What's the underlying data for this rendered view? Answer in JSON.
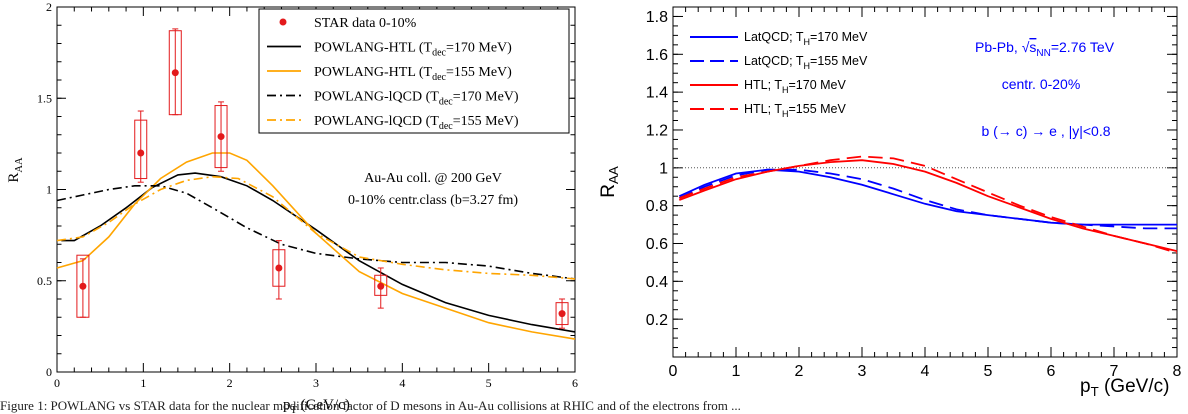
{
  "caption": "Figure 1: POWLANG vs STAR data for the nuclear modification factor of D mesons in Au-Au collisions at RHIC and of the electrons from ...",
  "chart_data": [
    {
      "type": "line",
      "xlabel": {
        "main": "p",
        "sub": "T",
        "rest": " (GeV/c)"
      },
      "ylabel": {
        "main": "R",
        "sub": "AA"
      },
      "xlim": [
        0,
        6
      ],
      "ylim": [
        0,
        2
      ],
      "xticks": [
        0,
        1,
        2,
        3,
        4,
        5,
        6
      ],
      "yticks": [
        0,
        0.5,
        1,
        1.5,
        2
      ],
      "xtick_labels": [
        "0",
        "1",
        "2",
        "3",
        "4",
        "5",
        "6"
      ],
      "ytick_labels": [
        "0",
        "0.5",
        "1",
        "1.5",
        "2"
      ],
      "grid": false,
      "legend_position": "top-right",
      "legend": [
        {
          "text": "STAR data 0-10%",
          "color": "#e31a1c",
          "style": "marker"
        },
        {
          "text": "POWLANG-HTL (T",
          "sub": "dec",
          "rest": "=170 MeV)",
          "color": "#000000",
          "style": "solid"
        },
        {
          "text": "POWLANG-HTL (T",
          "sub": "dec",
          "rest": "=155 MeV)",
          "color": "#ffa500",
          "style": "solid"
        },
        {
          "text": "POWLANG-lQCD (T",
          "sub": "dec",
          "rest": "=170 MeV)",
          "color": "#000000",
          "style": "dashdot"
        },
        {
          "text": "POWLANG-lQCD (T",
          "sub": "dec",
          "rest": "=155 MeV)",
          "color": "#ffa500",
          "style": "dashdot"
        }
      ],
      "annotations": [
        "Au-Au coll. @ 200 GeV",
        "0-10% centr.class (b=3.27 fm)"
      ],
      "points": {
        "name": "STAR data 0-10%",
        "x": [
          0.3,
          0.97,
          1.37,
          1.9,
          2.57,
          3.75,
          5.85
        ],
        "y": [
          0.47,
          1.2,
          1.64,
          1.29,
          0.57,
          0.47,
          0.32
        ],
        "stat_lo": [
          0.3,
          1.04,
          1.41,
          1.1,
          0.4,
          0.35,
          0.24
        ],
        "stat_hi": [
          0.62,
          1.43,
          1.88,
          1.48,
          0.72,
          0.57,
          0.4
        ],
        "sys_lo": [
          0.3,
          1.06,
          1.41,
          1.12,
          0.47,
          0.42,
          0.26
        ],
        "sys_hi": [
          0.64,
          1.38,
          1.87,
          1.46,
          0.67,
          0.53,
          0.38
        ]
      },
      "series": [
        {
          "name": "POWLANG-HTL (Tdec=170 MeV)",
          "color": "#000000",
          "dash": "solid",
          "x": [
            0.05,
            0.2,
            0.5,
            0.8,
            1.1,
            1.4,
            1.6,
            1.9,
            2.2,
            2.5,
            3.0,
            3.5,
            4.0,
            4.5,
            5.0,
            5.5,
            6.0
          ],
          "y": [
            0.72,
            0.72,
            0.8,
            0.9,
            1.01,
            1.08,
            1.09,
            1.07,
            1.02,
            0.94,
            0.78,
            0.61,
            0.48,
            0.38,
            0.31,
            0.26,
            0.22
          ]
        },
        {
          "name": "POWLANG-HTL (Tdec=155 MeV)",
          "color": "#ffa500",
          "dash": "solid",
          "x": [
            0.0,
            0.3,
            0.6,
            0.9,
            1.2,
            1.5,
            1.8,
            2.0,
            2.2,
            2.5,
            3.0,
            3.5,
            4.0,
            4.5,
            5.0,
            5.5,
            6.0
          ],
          "y": [
            0.57,
            0.61,
            0.74,
            0.92,
            1.06,
            1.15,
            1.2,
            1.2,
            1.16,
            1.02,
            0.76,
            0.55,
            0.43,
            0.35,
            0.27,
            0.22,
            0.18
          ]
        },
        {
          "name": "POWLANG-lQCD (Tdec=170 MeV)",
          "color": "#000000",
          "dash": "dashdot",
          "x": [
            0.0,
            0.3,
            0.6,
            0.9,
            1.2,
            1.5,
            1.8,
            2.2,
            2.6,
            3.0,
            3.5,
            4.0,
            4.5,
            5.0,
            5.5,
            6.0
          ],
          "y": [
            0.94,
            0.97,
            1.0,
            1.02,
            1.02,
            0.98,
            0.9,
            0.79,
            0.7,
            0.65,
            0.62,
            0.6,
            0.6,
            0.58,
            0.54,
            0.51
          ]
        },
        {
          "name": "POWLANG-lQCD (Tdec=155 MeV)",
          "color": "#ffa500",
          "dash": "dashdot",
          "x": [
            0.0,
            0.3,
            0.6,
            0.9,
            1.2,
            1.5,
            1.8,
            2.1,
            2.5,
            3.0,
            3.5,
            4.0,
            4.5,
            5.0,
            5.5,
            6.0
          ],
          "y": [
            0.72,
            0.74,
            0.82,
            0.92,
            1.0,
            1.05,
            1.07,
            1.06,
            0.96,
            0.76,
            0.63,
            0.59,
            0.56,
            0.54,
            0.53,
            0.51
          ]
        }
      ]
    },
    {
      "type": "line",
      "xlabel": {
        "main": "p",
        "sub": "T",
        "rest": " (GeV/c)"
      },
      "ylabel": {
        "main": "R",
        "sub": "AA"
      },
      "xlim": [
        0,
        8
      ],
      "ylim": [
        0,
        1.85
      ],
      "xticks": [
        0,
        1,
        2,
        3,
        4,
        5,
        6,
        7,
        8
      ],
      "yticks": [
        0.2,
        0.4,
        0.6,
        0.8,
        1,
        1.2,
        1.4,
        1.6,
        1.8
      ],
      "xtick_labels": [
        "0",
        "1",
        "2",
        "3",
        "4",
        "5",
        "6",
        "7",
        "8"
      ],
      "ytick_labels": [
        "0.2",
        "0.4",
        "0.6",
        "0.8",
        "1",
        "1.2",
        "1.4",
        "1.6",
        "1.8"
      ],
      "grid": false,
      "reference_line": 1,
      "legend_position": "top-left",
      "legend": [
        {
          "text": "LatQCD; T",
          "sub": "H",
          "rest": "=170 MeV",
          "color": "#0000ff",
          "style": "solid"
        },
        {
          "text": "LatQCD; T",
          "sub": "H",
          "rest": "=155 MeV",
          "color": "#0000ff",
          "style": "dashed"
        },
        {
          "text": "HTL; T",
          "sub": "H",
          "rest": "=170 MeV",
          "color": "#ff0000",
          "style": "solid"
        },
        {
          "text": "HTL; T",
          "sub": "H",
          "rest": "=155 MeV",
          "color": "#ff0000",
          "style": "dashed"
        }
      ],
      "annotations": [
        {
          "pre": "Pb-Pb, ",
          "sqrt": "s",
          "sub": "NN",
          "post": "=2.76 TeV"
        },
        "centr. 0-20%",
        "b (→ c) → e , |y|<0.8"
      ],
      "annotation_color": "#0000ff",
      "series": [
        {
          "name": "LatQCD; TH=170 MeV",
          "color": "#0000ff",
          "dash": "solid",
          "x": [
            0.1,
            0.5,
            1.0,
            1.5,
            2.0,
            2.5,
            3.0,
            3.5,
            4.0,
            4.5,
            5.0,
            5.5,
            6.0,
            6.5,
            7.0,
            7.5,
            8.0
          ],
          "y": [
            0.85,
            0.91,
            0.97,
            0.99,
            0.98,
            0.95,
            0.91,
            0.86,
            0.81,
            0.77,
            0.75,
            0.73,
            0.71,
            0.7,
            0.7,
            0.7,
            0.7
          ]
        },
        {
          "name": "LatQCD; TH=155 MeV",
          "color": "#0000ff",
          "dash": "dashed",
          "x": [
            0.1,
            0.5,
            1.0,
            1.5,
            2.0,
            2.5,
            3.0,
            3.5,
            4.0,
            4.5,
            5.0,
            5.5,
            6.0,
            6.5,
            7.0,
            7.5,
            8.0
          ],
          "y": [
            0.84,
            0.9,
            0.96,
            0.99,
            0.99,
            0.97,
            0.94,
            0.89,
            0.83,
            0.78,
            0.75,
            0.73,
            0.71,
            0.7,
            0.69,
            0.68,
            0.68
          ]
        },
        {
          "name": "HTL; TH=170 MeV",
          "color": "#ff0000",
          "dash": "solid",
          "x": [
            0.1,
            0.5,
            1.0,
            1.5,
            2.0,
            2.5,
            3.0,
            3.5,
            4.0,
            4.5,
            5.0,
            5.5,
            6.0,
            6.5,
            7.0,
            7.5,
            8.0
          ],
          "y": [
            0.83,
            0.88,
            0.94,
            0.98,
            1.01,
            1.03,
            1.04,
            1.02,
            0.98,
            0.92,
            0.85,
            0.79,
            0.73,
            0.68,
            0.64,
            0.6,
            0.56
          ]
        },
        {
          "name": "HTL; TH=155 MeV",
          "color": "#ff0000",
          "dash": "dashed",
          "x": [
            0.1,
            0.5,
            1.0,
            1.5,
            2.0,
            2.5,
            3.0,
            3.5,
            4.0,
            4.5,
            5.0,
            5.5,
            6.0,
            6.5,
            7.0,
            7.5,
            8.0
          ],
          "y": [
            0.84,
            0.89,
            0.95,
            0.98,
            1.01,
            1.04,
            1.06,
            1.05,
            1.01,
            0.94,
            0.87,
            0.8,
            0.74,
            0.69,
            0.64,
            0.6,
            0.55
          ]
        }
      ]
    }
  ]
}
